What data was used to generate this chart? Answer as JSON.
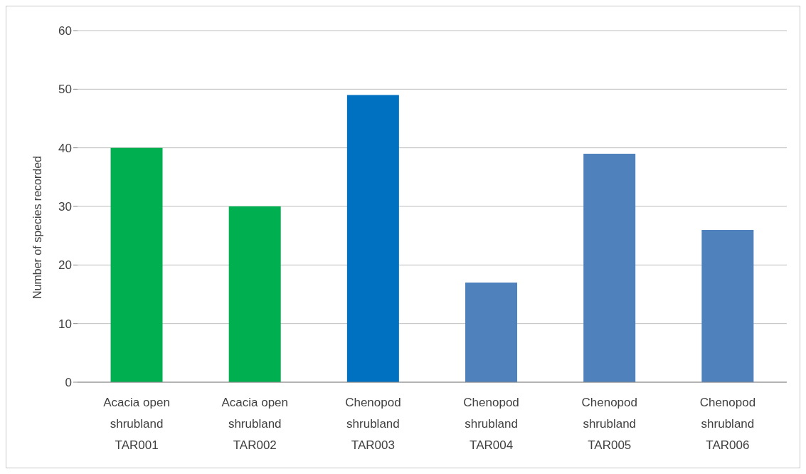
{
  "chart_data": {
    "type": "bar",
    "ylabel": "Number of species recorded",
    "categories": [
      "Acacia open shrubland TAR001",
      "Acacia open shrubland TAR002",
      "Chenopod shrubland TAR003",
      "Chenopod shrubland TAR004",
      "Chenopod shrubland TAR005",
      "Chenopod shrubland TAR006"
    ],
    "values": [
      40,
      30,
      49,
      17,
      39,
      26
    ],
    "colors": [
      "#00b050",
      "#00b050",
      "#0070c0",
      "#4f81bd",
      "#4f81bd",
      "#4f81bd"
    ],
    "ylim": [
      0,
      60
    ],
    "yticks": [
      0,
      10,
      20,
      30,
      40,
      50,
      60
    ],
    "grid": "y"
  }
}
